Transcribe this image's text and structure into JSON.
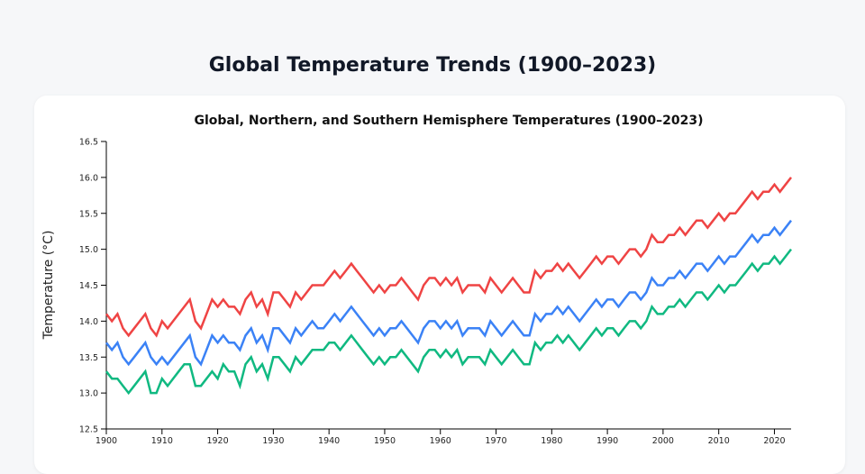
{
  "page": {
    "title": "Global Temperature Trends (1900–2023)"
  },
  "chart_data": {
    "type": "line",
    "title": "Global, Northern, and Southern Hemisphere Temperatures (1900–2023)",
    "xlabel": "",
    "ylabel": "Temperature (°C)",
    "xlim": [
      1900,
      2023
    ],
    "ylim": [
      12.5,
      16.5
    ],
    "x_ticks": [
      1900,
      1910,
      1920,
      1930,
      1940,
      1950,
      1960,
      1970,
      1980,
      1990,
      2000,
      2010,
      2020
    ],
    "y_ticks": [
      "12.5",
      "13.0",
      "13.5",
      "14.0",
      "14.5",
      "15.0",
      "15.5",
      "16.0",
      "16.5"
    ],
    "grid": false,
    "x_start": 1900,
    "x_step": 1,
    "series": [
      {
        "color": "#ef4444",
        "values": [
          14.1,
          14.0,
          14.1,
          13.9,
          13.8,
          13.9,
          14.0,
          14.1,
          13.9,
          13.8,
          14.0,
          13.9,
          14.0,
          14.1,
          14.2,
          14.3,
          14.0,
          13.9,
          14.1,
          14.3,
          14.2,
          14.3,
          14.2,
          14.2,
          14.1,
          14.3,
          14.4,
          14.2,
          14.3,
          14.1,
          14.4,
          14.4,
          14.3,
          14.2,
          14.4,
          14.3,
          14.4,
          14.5,
          14.5,
          14.5,
          14.6,
          14.7,
          14.6,
          14.7,
          14.8,
          14.7,
          14.6,
          14.5,
          14.4,
          14.5,
          14.4,
          14.5,
          14.5,
          14.6,
          14.5,
          14.4,
          14.3,
          14.5,
          14.6,
          14.6,
          14.5,
          14.6,
          14.5,
          14.6,
          14.4,
          14.5,
          14.5,
          14.5,
          14.4,
          14.6,
          14.5,
          14.4,
          14.5,
          14.6,
          14.5,
          14.4,
          14.4,
          14.7,
          14.6,
          14.7,
          14.7,
          14.8,
          14.7,
          14.8,
          14.7,
          14.6,
          14.7,
          14.8,
          14.9,
          14.8,
          14.9,
          14.9,
          14.8,
          14.9,
          15.0,
          15.0,
          14.9,
          15.0,
          15.2,
          15.1,
          15.1,
          15.2,
          15.2,
          15.3,
          15.2,
          15.3,
          15.4,
          15.4,
          15.3,
          15.4,
          15.5,
          15.4,
          15.5,
          15.5,
          15.6,
          15.7,
          15.8,
          15.7,
          15.8,
          15.8,
          15.9,
          15.8,
          15.9,
          16.0
        ]
      },
      {
        "color": "#3b82f6",
        "values": [
          13.7,
          13.6,
          13.7,
          13.5,
          13.4,
          13.5,
          13.6,
          13.7,
          13.5,
          13.4,
          13.5,
          13.4,
          13.5,
          13.6,
          13.7,
          13.8,
          13.5,
          13.4,
          13.6,
          13.8,
          13.7,
          13.8,
          13.7,
          13.7,
          13.6,
          13.8,
          13.9,
          13.7,
          13.8,
          13.6,
          13.9,
          13.9,
          13.8,
          13.7,
          13.9,
          13.8,
          13.9,
          14.0,
          13.9,
          13.9,
          14.0,
          14.1,
          14.0,
          14.1,
          14.2,
          14.1,
          14.0,
          13.9,
          13.8,
          13.9,
          13.8,
          13.9,
          13.9,
          14.0,
          13.9,
          13.8,
          13.7,
          13.9,
          14.0,
          14.0,
          13.9,
          14.0,
          13.9,
          14.0,
          13.8,
          13.9,
          13.9,
          13.9,
          13.8,
          14.0,
          13.9,
          13.8,
          13.9,
          14.0,
          13.9,
          13.8,
          13.8,
          14.1,
          14.0,
          14.1,
          14.1,
          14.2,
          14.1,
          14.2,
          14.1,
          14.0,
          14.1,
          14.2,
          14.3,
          14.2,
          14.3,
          14.3,
          14.2,
          14.3,
          14.4,
          14.4,
          14.3,
          14.4,
          14.6,
          14.5,
          14.5,
          14.6,
          14.6,
          14.7,
          14.6,
          14.7,
          14.8,
          14.8,
          14.7,
          14.8,
          14.9,
          14.8,
          14.9,
          14.9,
          15.0,
          15.1,
          15.2,
          15.1,
          15.2,
          15.2,
          15.3,
          15.2,
          15.3,
          15.4
        ]
      },
      {
        "color": "#10b981",
        "values": [
          13.3,
          13.2,
          13.2,
          13.1,
          13.0,
          13.1,
          13.2,
          13.3,
          13.0,
          13.0,
          13.2,
          13.1,
          13.2,
          13.3,
          13.4,
          13.4,
          13.1,
          13.1,
          13.2,
          13.3,
          13.2,
          13.4,
          13.3,
          13.3,
          13.1,
          13.4,
          13.5,
          13.3,
          13.4,
          13.2,
          13.5,
          13.5,
          13.4,
          13.3,
          13.5,
          13.4,
          13.5,
          13.6,
          13.6,
          13.6,
          13.7,
          13.7,
          13.6,
          13.7,
          13.8,
          13.7,
          13.6,
          13.5,
          13.4,
          13.5,
          13.4,
          13.5,
          13.5,
          13.6,
          13.5,
          13.4,
          13.3,
          13.5,
          13.6,
          13.6,
          13.5,
          13.6,
          13.5,
          13.6,
          13.4,
          13.5,
          13.5,
          13.5,
          13.4,
          13.6,
          13.5,
          13.4,
          13.5,
          13.6,
          13.5,
          13.4,
          13.4,
          13.7,
          13.6,
          13.7,
          13.7,
          13.8,
          13.7,
          13.8,
          13.7,
          13.6,
          13.7,
          13.8,
          13.9,
          13.8,
          13.9,
          13.9,
          13.8,
          13.9,
          14.0,
          14.0,
          13.9,
          14.0,
          14.2,
          14.1,
          14.1,
          14.2,
          14.2,
          14.3,
          14.2,
          14.3,
          14.4,
          14.4,
          14.3,
          14.4,
          14.5,
          14.4,
          14.5,
          14.5,
          14.6,
          14.7,
          14.8,
          14.7,
          14.8,
          14.8,
          14.9,
          14.8,
          14.9,
          15.0
        ]
      }
    ]
  }
}
